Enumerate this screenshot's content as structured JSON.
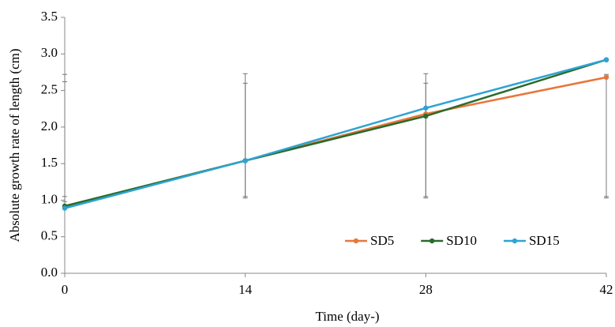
{
  "chart_data": {
    "type": "line",
    "x_label": "Time (day-)",
    "y_label": "Absolute growth rate of length (cm)",
    "x": [
      0,
      14,
      28,
      42
    ],
    "series": [
      {
        "name": "SD5",
        "color": "#e8763a",
        "values": [
          0.91,
          1.54,
          2.18,
          2.68
        ],
        "error_low": [
          0.98,
          1.03,
          1.03,
          1.03
        ],
        "error_high": [
          2.62,
          2.6,
          2.6,
          2.7
        ]
      },
      {
        "name": "SD10",
        "color": "#2a6b2a",
        "values": [
          0.92,
          1.54,
          2.15,
          2.92
        ],
        "error_low": [
          1.05,
          1.05,
          1.05,
          1.05
        ],
        "error_high": [
          2.72,
          2.73,
          2.73,
          2.72
        ]
      },
      {
        "name": "SD15",
        "color": "#2ea3d4",
        "values": [
          0.89,
          1.54,
          2.26,
          2.92
        ]
      }
    ],
    "xlim": [
      0,
      42
    ],
    "xticks": [
      0,
      14,
      28,
      42
    ],
    "ylim": [
      0,
      3.5
    ],
    "yticks": [
      {
        "value": 0,
        "label": "0.0"
      },
      0.5,
      {
        "value": 1,
        "label": "1.0"
      },
      1.5,
      {
        "value": 2,
        "label": "2.0"
      },
      2.5,
      {
        "value": 3,
        "label": "3.0"
      },
      3.5
    ],
    "legend": "lower right"
  }
}
